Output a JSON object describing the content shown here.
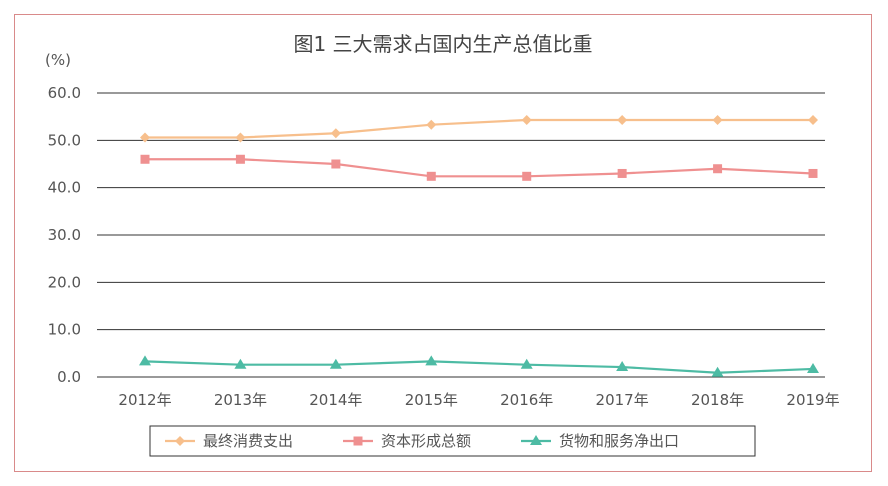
{
  "chart_data": {
    "type": "line",
    "title": "图1    三大需求占国内生产总值比重",
    "unit": "(%)",
    "categories": [
      "2012年",
      "2013年",
      "2014年",
      "2015年",
      "2016年",
      "2017年",
      "2018年",
      "2019年"
    ],
    "ylim": [
      0,
      60
    ],
    "yticks": [
      "0.0",
      "10.0",
      "20.0",
      "30.0",
      "40.0",
      "50.0",
      "60.0"
    ],
    "grid": true,
    "legend_position": "bottom",
    "series": [
      {
        "name": "最终消费支出",
        "color": "#f7bf8c",
        "marker": "diamond",
        "values": [
          50.6,
          50.6,
          51.5,
          53.3,
          54.3,
          54.3,
          54.3,
          54.3
        ]
      },
      {
        "name": "资本形成总额",
        "color": "#ef9090",
        "marker": "square",
        "values": [
          46.0,
          46.0,
          45.0,
          42.4,
          42.4,
          43.0,
          44.0,
          43.0
        ]
      },
      {
        "name": "货物和服务净出口",
        "color": "#4dbba4",
        "marker": "triangle",
        "values": [
          3.3,
          2.6,
          2.6,
          3.3,
          2.6,
          2.1,
          0.9,
          1.7
        ]
      }
    ]
  }
}
